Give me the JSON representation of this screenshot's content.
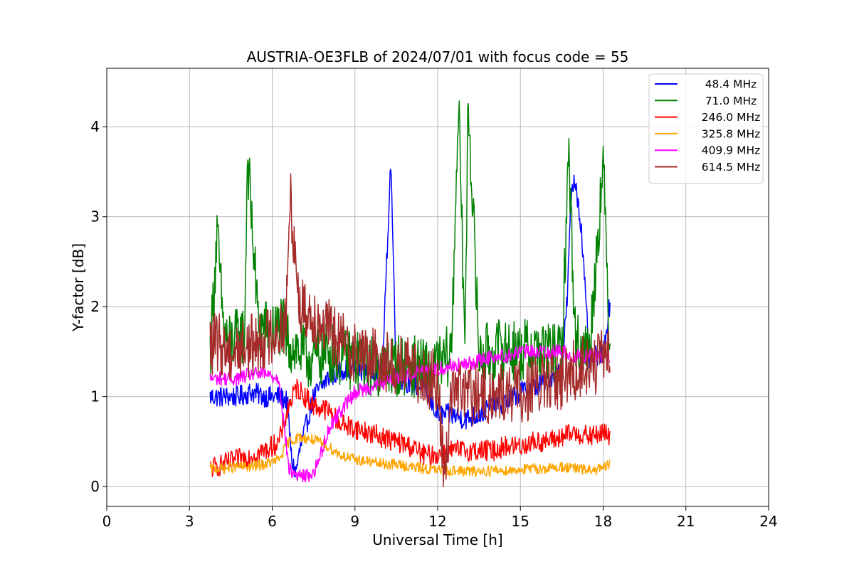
{
  "chart_data": {
    "type": "line",
    "title": "AUSTRIA-OE3FLB of 2024/07/01 with focus code = 55",
    "xlabel": "Universal Time [h]",
    "ylabel": "Y-factor [dB]",
    "xlim": [
      0,
      24
    ],
    "ylim": [
      -0.22,
      4.65
    ],
    "xticks": [
      0,
      3,
      6,
      9,
      12,
      15,
      18,
      21,
      24
    ],
    "xtick_labels": [
      "0",
      "3",
      "6",
      "9",
      "12",
      "15",
      "18",
      "21",
      "24"
    ],
    "yticks": [
      0,
      1,
      2,
      3,
      4
    ],
    "ytick_labels": [
      "0",
      "1",
      "2",
      "3",
      "4"
    ],
    "grid": true,
    "legend_position": "top-right",
    "series": [
      {
        "name": "48.4 MHz",
        "color": "#0000ff",
        "x": [
          3.75,
          4.25,
          4.75,
          5.25,
          5.75,
          6.25,
          6.55,
          6.7,
          6.85,
          7.0,
          7.25,
          7.5,
          7.75,
          8.0,
          8.5,
          9.0,
          9.5,
          10.0,
          10.3,
          10.5,
          11.0,
          11.5,
          12.0,
          12.5,
          13.0,
          13.5,
          14.0,
          14.5,
          15.0,
          15.5,
          16.0,
          16.5,
          16.7,
          16.85,
          17.0,
          17.2,
          17.5,
          18.0,
          18.25
        ],
        "y": [
          1.0,
          1.0,
          1.0,
          1.05,
          1.0,
          1.0,
          0.95,
          0.3,
          0.15,
          0.4,
          0.7,
          1.0,
          1.1,
          1.2,
          1.3,
          1.3,
          1.3,
          1.3,
          3.65,
          1.2,
          1.15,
          1.1,
          0.8,
          0.8,
          0.75,
          0.8,
          0.9,
          0.95,
          1.05,
          1.1,
          1.2,
          1.3,
          2.1,
          3.3,
          3.4,
          2.9,
          1.4,
          1.5,
          2.05
        ]
      },
      {
        "name": "71.0 MHz",
        "color": "#008000",
        "x": [
          3.75,
          4.0,
          4.25,
          4.5,
          5.0,
          5.1,
          5.5,
          6.0,
          6.3,
          6.6,
          7.0,
          7.5,
          8.0,
          8.5,
          9.0,
          9.5,
          10.0,
          10.5,
          11.0,
          11.5,
          12.0,
          12.5,
          12.75,
          13.0,
          13.1,
          13.5,
          14.0,
          14.5,
          15.0,
          15.5,
          16.0,
          16.5,
          16.75,
          17.0,
          17.5,
          18.0,
          18.25
        ],
        "y": [
          1.5,
          2.8,
          1.7,
          1.6,
          1.7,
          3.7,
          1.8,
          1.7,
          1.8,
          1.6,
          1.5,
          1.4,
          1.5,
          1.45,
          1.4,
          1.35,
          1.3,
          1.35,
          1.35,
          1.3,
          1.3,
          1.5,
          4.3,
          1.5,
          4.4,
          1.45,
          1.5,
          1.55,
          1.5,
          1.55,
          1.5,
          1.45,
          3.75,
          1.6,
          1.5,
          3.6,
          1.5
        ]
      },
      {
        "name": "246.0 MHz",
        "color": "#ff0000",
        "x": [
          3.75,
          4.25,
          4.75,
          5.25,
          5.75,
          6.25,
          6.6,
          6.9,
          7.2,
          7.5,
          8.0,
          8.5,
          9.0,
          9.5,
          10.0,
          10.5,
          11.0,
          11.5,
          12.0,
          12.5,
          13.0,
          13.5,
          14.0,
          14.5,
          15.0,
          15.5,
          16.0,
          16.5,
          17.0,
          17.5,
          18.0,
          18.25
        ],
        "y": [
          0.2,
          0.25,
          0.3,
          0.35,
          0.4,
          0.5,
          0.9,
          1.1,
          1.0,
          0.9,
          0.85,
          0.7,
          0.65,
          0.6,
          0.55,
          0.5,
          0.45,
          0.35,
          0.35,
          0.4,
          0.4,
          0.4,
          0.4,
          0.45,
          0.45,
          0.5,
          0.5,
          0.55,
          0.6,
          0.55,
          0.6,
          0.55
        ]
      },
      {
        "name": "325.8 MHz",
        "color": "#ffa500",
        "x": [
          3.75,
          4.25,
          4.75,
          5.25,
          5.75,
          6.25,
          6.6,
          7.0,
          7.5,
          8.0,
          8.5,
          9.0,
          9.5,
          10.0,
          10.5,
          11.0,
          11.5,
          12.0,
          12.5,
          13.0,
          13.5,
          14.0,
          14.5,
          15.0,
          15.5,
          16.0,
          16.5,
          17.0,
          17.5,
          18.0,
          18.25
        ],
        "y": [
          0.2,
          0.2,
          0.22,
          0.22,
          0.25,
          0.3,
          0.5,
          0.55,
          0.52,
          0.45,
          0.35,
          0.3,
          0.28,
          0.25,
          0.25,
          0.22,
          0.2,
          0.18,
          0.18,
          0.17,
          0.17,
          0.18,
          0.18,
          0.19,
          0.2,
          0.2,
          0.22,
          0.2,
          0.18,
          0.2,
          0.25
        ]
      },
      {
        "name": "409.9 MHz",
        "color": "#ff00ff",
        "x": [
          3.75,
          4.25,
          4.75,
          5.25,
          5.75,
          6.25,
          6.6,
          6.75,
          7.0,
          7.25,
          7.5,
          7.75,
          8.0,
          8.25,
          8.5,
          8.75,
          9.0,
          9.5,
          10.0,
          10.5,
          11.0,
          11.5,
          12.0,
          12.5,
          13.0,
          13.5,
          14.0,
          14.5,
          15.0,
          15.5,
          16.0,
          16.5,
          17.0,
          17.5,
          18.0,
          18.25
        ],
        "y": [
          1.2,
          1.2,
          1.2,
          1.25,
          1.25,
          1.2,
          0.2,
          0.15,
          0.12,
          0.12,
          0.15,
          0.35,
          0.6,
          0.75,
          0.85,
          0.95,
          1.05,
          1.1,
          1.15,
          1.2,
          1.25,
          1.3,
          1.3,
          1.35,
          1.35,
          1.4,
          1.45,
          1.45,
          1.5,
          1.5,
          1.5,
          1.5,
          1.45,
          1.45,
          1.45,
          1.45
        ]
      },
      {
        "name": "614.5 MHz",
        "color": "#a52a2a",
        "x": [
          3.75,
          4.0,
          4.5,
          5.0,
          5.5,
          6.0,
          6.5,
          6.65,
          7.0,
          7.5,
          8.0,
          8.5,
          9.0,
          9.5,
          10.0,
          10.5,
          11.0,
          11.5,
          12.0,
          12.25,
          12.5,
          13.0,
          13.5,
          14.0,
          14.5,
          15.0,
          15.5,
          16.0,
          16.5,
          17.0,
          17.5,
          18.0,
          18.25
        ],
        "y": [
          1.55,
          1.6,
          1.5,
          1.55,
          1.6,
          1.7,
          1.8,
          3.25,
          2.0,
          1.9,
          1.75,
          1.6,
          1.5,
          1.45,
          1.4,
          1.35,
          1.3,
          1.25,
          1.15,
          0.05,
          1.1,
          1.05,
          1.0,
          1.0,
          1.05,
          1.05,
          1.1,
          1.15,
          1.2,
          1.3,
          1.35,
          1.4,
          1.45
        ]
      }
    ]
  }
}
